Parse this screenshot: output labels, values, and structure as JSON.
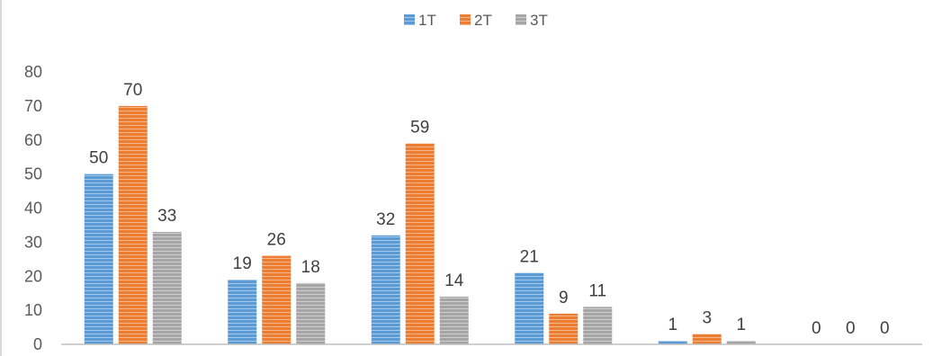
{
  "chart_data": {
    "type": "bar",
    "title": "",
    "xlabel": "",
    "ylabel": "",
    "categories": [
      "",
      "",
      "",
      "",
      "",
      ""
    ],
    "series": [
      {
        "name": "1T",
        "values": [
          50,
          19,
          32,
          21,
          1,
          0
        ],
        "color": "#5b9bd5"
      },
      {
        "name": "2T",
        "values": [
          70,
          26,
          59,
          9,
          3,
          0
        ],
        "color": "#ed7d31"
      },
      {
        "name": "3T",
        "values": [
          33,
          18,
          14,
          11,
          1,
          0
        ],
        "color": "#a5a5a5"
      }
    ],
    "ylim": [
      0,
      80
    ],
    "yticks": [
      "0",
      "10",
      "20",
      "30",
      "40",
      "50",
      "60",
      "70",
      "80"
    ],
    "grid": false,
    "legend": "top-center",
    "data_labels": true,
    "bar_pattern": "horizontal-stripes"
  }
}
